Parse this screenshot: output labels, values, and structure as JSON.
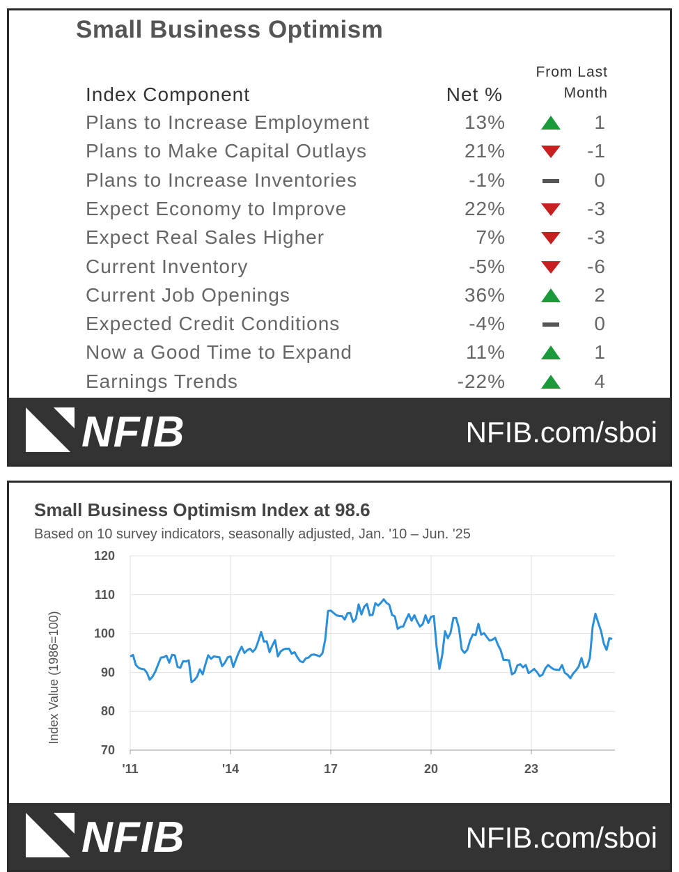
{
  "table": {
    "title": "Small Business Optimism",
    "columns": [
      "Index Component",
      "Net %",
      "From Last Month"
    ],
    "rows": [
      [
        "Plans to Increase Employment",
        "13%",
        1
      ],
      [
        "Plans to Make Capital Outlays",
        "21%",
        -1
      ],
      [
        "Plans to Increase Inventories",
        "-1%",
        0
      ],
      [
        "Expect Economy to Improve",
        "22%",
        -3
      ],
      [
        "Expect Real Sales Higher",
        "7%",
        -3
      ],
      [
        "Current Inventory",
        "-5%",
        -6
      ],
      [
        "Current Job Openings",
        "36%",
        2
      ],
      [
        "Expected Credit Conditions",
        "-4%",
        0
      ],
      [
        "Now a Good Time to Expand",
        "11%",
        1
      ],
      [
        "Earnings Trends",
        "-22%",
        4
      ]
    ]
  },
  "branding": {
    "logo": "NFIB",
    "url": "NFIB.com/sboi"
  },
  "chart_data": {
    "type": "line",
    "title": "Small Business Optimism Index at 98.6",
    "subtitle": "Based on 10 survey indicators, seasonally adjusted,  Jan. '10 – Jun. '25",
    "y_label": "Index Value (1986=100)",
    "color": "#2a8fd8",
    "grid": true,
    "xlim": [
      2011,
      2025.5
    ],
    "xticks": [
      {
        "value": 2011,
        "label": "'11"
      },
      {
        "value": 2014,
        "label": "'14"
      },
      {
        "value": 2017,
        "label": "17"
      },
      {
        "value": 2020,
        "label": "20"
      },
      {
        "value": 2023,
        "label": "23"
      }
    ],
    "ylim": [
      70,
      120
    ],
    "yticks": [
      70,
      80,
      90,
      100,
      110,
      120
    ],
    "x": [
      2011,
      2011.083,
      2011.167,
      2011.25,
      2011.333,
      2011.417,
      2011.5,
      2011.583,
      2011.667,
      2011.75,
      2011.833,
      2011.917,
      2012,
      2012.083,
      2012.167,
      2012.25,
      2012.333,
      2012.417,
      2012.5,
      2012.583,
      2012.667,
      2012.75,
      2012.833,
      2012.917,
      2013,
      2013.083,
      2013.167,
      2013.25,
      2013.333,
      2013.417,
      2013.5,
      2013.583,
      2013.667,
      2013.75,
      2013.833,
      2013.917,
      2014,
      2014.083,
      2014.167,
      2014.25,
      2014.333,
      2014.417,
      2014.5,
      2014.583,
      2014.667,
      2014.75,
      2014.833,
      2014.917,
      2015,
      2015.083,
      2015.167,
      2015.25,
      2015.333,
      2015.417,
      2015.5,
      2015.583,
      2015.667,
      2015.75,
      2015.833,
      2015.917,
      2016,
      2016.083,
      2016.167,
      2016.25,
      2016.333,
      2016.417,
      2016.5,
      2016.583,
      2016.667,
      2016.75,
      2016.833,
      2016.917,
      2017,
      2017.083,
      2017.167,
      2017.25,
      2017.333,
      2017.417,
      2017.5,
      2017.583,
      2017.667,
      2017.75,
      2017.833,
      2017.917,
      2018,
      2018.083,
      2018.167,
      2018.25,
      2018.333,
      2018.417,
      2018.5,
      2018.583,
      2018.667,
      2018.75,
      2018.833,
      2018.917,
      2019,
      2019.083,
      2019.167,
      2019.25,
      2019.333,
      2019.417,
      2019.5,
      2019.583,
      2019.667,
      2019.75,
      2019.833,
      2019.917,
      2020,
      2020.083,
      2020.167,
      2020.25,
      2020.333,
      2020.417,
      2020.5,
      2020.583,
      2020.667,
      2020.75,
      2020.833,
      2020.917,
      2021,
      2021.083,
      2021.167,
      2021.25,
      2021.333,
      2021.417,
      2021.5,
      2021.583,
      2021.667,
      2021.75,
      2021.833,
      2021.917,
      2022,
      2022.083,
      2022.167,
      2022.25,
      2022.333,
      2022.417,
      2022.5,
      2022.583,
      2022.667,
      2022.75,
      2022.833,
      2022.917,
      2023,
      2023.083,
      2023.167,
      2023.25,
      2023.333,
      2023.417,
      2023.5,
      2023.583,
      2023.667,
      2023.75,
      2023.833,
      2023.917,
      2024,
      2024.083,
      2024.167,
      2024.25,
      2024.333,
      2024.417,
      2024.5,
      2024.583,
      2024.667,
      2024.75,
      2024.833,
      2024.917,
      2025,
      2025.083,
      2025.167,
      2025.25,
      2025.333,
      2025.417
    ],
    "values": [
      94.1,
      94.5,
      91.9,
      91.2,
      90.9,
      90.8,
      89.9,
      88.1,
      88.9,
      90.2,
      92.0,
      93.8,
      93.9,
      94.3,
      92.5,
      94.5,
      94.4,
      91.4,
      91.2,
      92.9,
      92.8,
      93.1,
      87.5,
      88.0,
      88.9,
      90.8,
      89.5,
      92.1,
      94.4,
      93.5,
      94.1,
      94.0,
      93.9,
      91.6,
      92.5,
      93.9,
      94.1,
      91.4,
      93.4,
      95.2,
      96.6,
      95.0,
      95.7,
      96.1,
      95.3,
      96.1,
      98.1,
      100.4,
      97.9,
      98.0,
      95.2,
      96.9,
      98.3,
      94.1,
      95.4,
      95.9,
      96.1,
      96.1,
      94.8,
      95.2,
      93.9,
      92.9,
      92.6,
      93.6,
      93.8,
      94.5,
      94.6,
      94.4,
      94.1,
      94.9,
      98.4,
      105.8,
      105.9,
      105.3,
      104.7,
      104.5,
      104.5,
      103.6,
      105.2,
      105.3,
      103.0,
      103.8,
      107.5,
      104.9,
      106.9,
      107.6,
      104.7,
      104.8,
      107.8,
      107.2,
      107.9,
      108.8,
      107.9,
      107.4,
      104.8,
      104.4,
      101.2,
      101.7,
      101.8,
      103.5,
      105.0,
      103.3,
      104.7,
      103.1,
      101.8,
      102.4,
      104.7,
      102.7,
      104.3,
      104.5,
      96.4,
      90.9,
      94.4,
      100.6,
      98.8,
      100.2,
      104.0,
      104.0,
      101.4,
      95.9,
      95.0,
      95.8,
      98.2,
      99.8,
      99.6,
      102.5,
      99.7,
      100.1,
      99.1,
      98.2,
      98.4,
      98.9,
      97.1,
      95.7,
      93.2,
      93.2,
      93.1,
      89.5,
      89.9,
      91.8,
      92.1,
      91.3,
      91.9,
      89.8,
      90.3,
      90.9,
      90.1,
      89.0,
      89.4,
      91.0,
      91.9,
      91.3,
      90.8,
      90.7,
      90.6,
      91.9,
      89.9,
      89.4,
      88.5,
      89.7,
      90.5,
      91.5,
      93.7,
      91.2,
      91.5,
      93.7,
      101.7,
      105.1,
      102.8,
      100.7,
      97.4,
      95.8,
      98.8,
      98.6
    ]
  }
}
